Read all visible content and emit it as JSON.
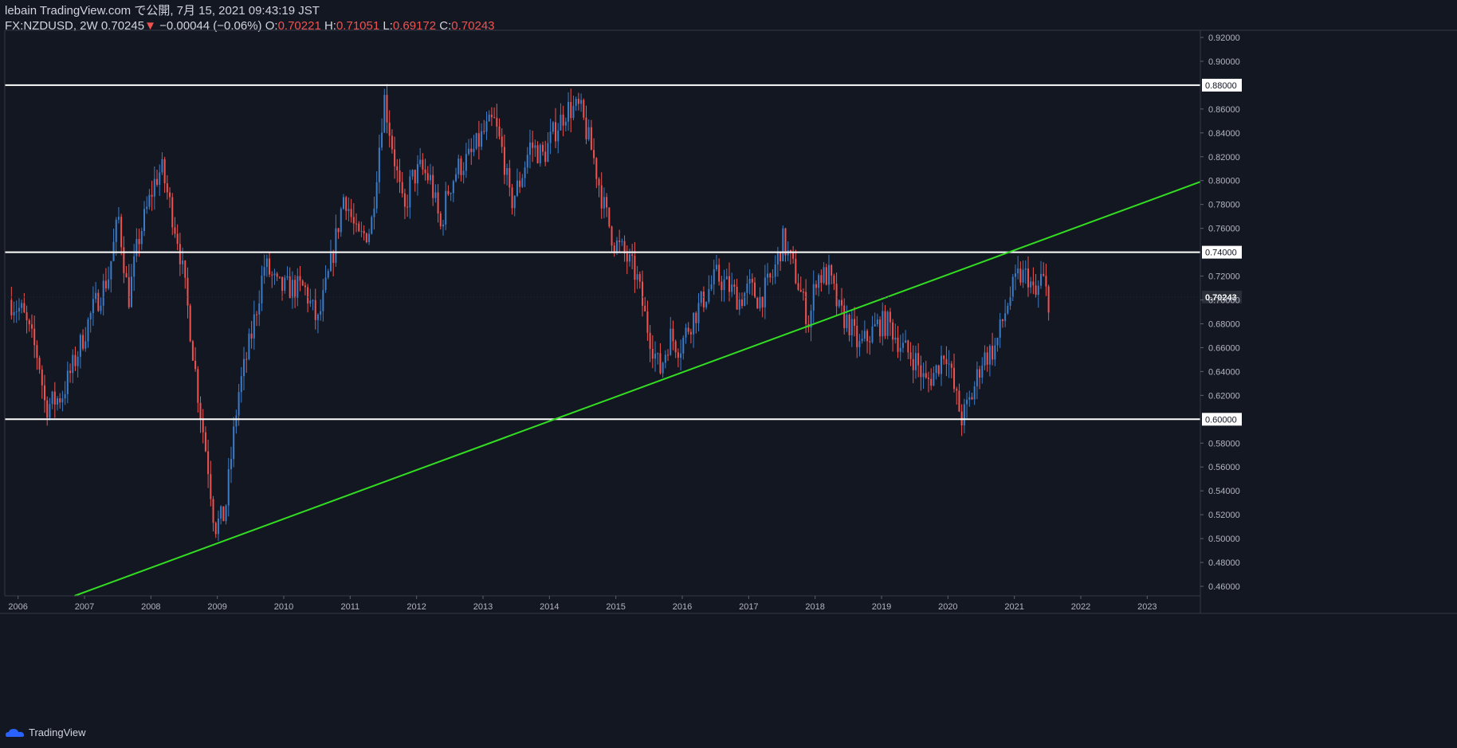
{
  "header": {
    "published": "lebain TradingView.com で公開, 7月 15, 2021 09:43:19 JST",
    "symbol": "FX:NZDUSD, 2W",
    "last": "0.70245",
    "change": "−0.00044 (−0.06%)",
    "open_label": "O:",
    "open": "0.70221",
    "high_label": "H:",
    "high": "0.71051",
    "low_label": "L:",
    "low": "0.69172",
    "close_label": "C:",
    "close": "0.70243"
  },
  "brand": {
    "label": "TradingView"
  },
  "colors": {
    "up": "#3a7cc8",
    "down": "#ef5350",
    "trendline": "#33dd22",
    "level": "#ffffff",
    "background": "#131722"
  },
  "chart_data": {
    "type": "candlestick",
    "xlim": [
      2005.8,
      2023.8
    ],
    "ylim": [
      0.452,
      0.926
    ],
    "y_ticks": [
      0.46,
      0.48,
      0.5,
      0.52,
      0.54,
      0.56,
      0.58,
      0.6,
      0.62,
      0.64,
      0.66,
      0.68,
      0.7,
      0.72,
      0.74,
      0.76,
      0.78,
      0.8,
      0.82,
      0.84,
      0.86,
      0.88,
      0.9,
      0.92
    ],
    "x_ticks": [
      "2006",
      "2007",
      "2008",
      "2009",
      "2010",
      "2011",
      "2012",
      "2013",
      "2014",
      "2015",
      "2016",
      "2017",
      "2018",
      "2019",
      "2020",
      "2021",
      "2022",
      "2023"
    ],
    "x_tick_values": [
      2006,
      2007,
      2008,
      2009,
      2010,
      2011,
      2012,
      2013,
      2014,
      2015,
      2016,
      2017,
      2018,
      2019,
      2020,
      2021,
      2022,
      2023
    ],
    "horizontal_levels": [
      {
        "value": 0.88,
        "label": "0.88000"
      },
      {
        "value": 0.74,
        "label": "0.74000"
      },
      {
        "value": 0.6,
        "label": "0.60000"
      }
    ],
    "last_price_label": "0.70243",
    "last_price": 0.70243,
    "trendline": {
      "from": [
        2006.85,
        0.452
      ],
      "to": [
        2023.8,
        0.799
      ]
    },
    "anchors": [
      [
        2005.9,
        0.7
      ],
      [
        2006.1,
        0.69
      ],
      [
        2006.35,
        0.65
      ],
      [
        2006.45,
        0.61
      ],
      [
        2006.7,
        0.62
      ],
      [
        2006.9,
        0.65
      ],
      [
        2007.15,
        0.69
      ],
      [
        2007.4,
        0.72
      ],
      [
        2007.55,
        0.77
      ],
      [
        2007.7,
        0.7
      ],
      [
        2007.85,
        0.75
      ],
      [
        2008.1,
        0.8
      ],
      [
        2008.2,
        0.81
      ],
      [
        2008.45,
        0.75
      ],
      [
        2008.6,
        0.69
      ],
      [
        2008.75,
        0.62
      ],
      [
        2008.9,
        0.56
      ],
      [
        2009.0,
        0.51
      ],
      [
        2009.15,
        0.52
      ],
      [
        2009.35,
        0.62
      ],
      [
        2009.55,
        0.67
      ],
      [
        2009.75,
        0.73
      ],
      [
        2009.95,
        0.71
      ],
      [
        2010.1,
        0.71
      ],
      [
        2010.35,
        0.71
      ],
      [
        2010.55,
        0.68
      ],
      [
        2010.75,
        0.73
      ],
      [
        2010.95,
        0.79
      ],
      [
        2011.15,
        0.75
      ],
      [
        2011.35,
        0.76
      ],
      [
        2011.55,
        0.87
      ],
      [
        2011.7,
        0.82
      ],
      [
        2011.85,
        0.77
      ],
      [
        2011.95,
        0.8
      ],
      [
        2012.1,
        0.81
      ],
      [
        2012.25,
        0.8
      ],
      [
        2012.4,
        0.76
      ],
      [
        2012.5,
        0.79
      ],
      [
        2012.65,
        0.81
      ],
      [
        2012.85,
        0.82
      ],
      [
        2013.05,
        0.84
      ],
      [
        2013.2,
        0.85
      ],
      [
        2013.35,
        0.82
      ],
      [
        2013.45,
        0.78
      ],
      [
        2013.6,
        0.8
      ],
      [
        2013.75,
        0.83
      ],
      [
        2013.95,
        0.82
      ],
      [
        2014.1,
        0.84
      ],
      [
        2014.3,
        0.86
      ],
      [
        2014.5,
        0.86
      ],
      [
        2014.7,
        0.82
      ],
      [
        2014.85,
        0.78
      ],
      [
        2015.0,
        0.75
      ],
      [
        2015.15,
        0.74
      ],
      [
        2015.35,
        0.72
      ],
      [
        2015.5,
        0.68
      ],
      [
        2015.7,
        0.64
      ],
      [
        2015.85,
        0.67
      ],
      [
        2016.0,
        0.66
      ],
      [
        2016.15,
        0.68
      ],
      [
        2016.35,
        0.7
      ],
      [
        2016.55,
        0.72
      ],
      [
        2016.75,
        0.71
      ],
      [
        2016.9,
        0.7
      ],
      [
        2017.05,
        0.71
      ],
      [
        2017.2,
        0.7
      ],
      [
        2017.4,
        0.72
      ],
      [
        2017.55,
        0.75
      ],
      [
        2017.75,
        0.72
      ],
      [
        2017.95,
        0.68
      ],
      [
        2018.05,
        0.72
      ],
      [
        2018.25,
        0.72
      ],
      [
        2018.4,
        0.69
      ],
      [
        2018.55,
        0.68
      ],
      [
        2018.7,
        0.66
      ],
      [
        2018.85,
        0.67
      ],
      [
        2019.0,
        0.68
      ],
      [
        2019.15,
        0.68
      ],
      [
        2019.35,
        0.66
      ],
      [
        2019.55,
        0.65
      ],
      [
        2019.7,
        0.63
      ],
      [
        2019.85,
        0.64
      ],
      [
        2020.0,
        0.66
      ],
      [
        2020.15,
        0.62
      ],
      [
        2020.25,
        0.6
      ],
      [
        2020.4,
        0.62
      ],
      [
        2020.55,
        0.65
      ],
      [
        2020.75,
        0.66
      ],
      [
        2020.95,
        0.7
      ],
      [
        2021.1,
        0.72
      ],
      [
        2021.25,
        0.72
      ],
      [
        2021.35,
        0.7
      ],
      [
        2021.45,
        0.72
      ],
      [
        2021.55,
        0.7
      ]
    ]
  }
}
